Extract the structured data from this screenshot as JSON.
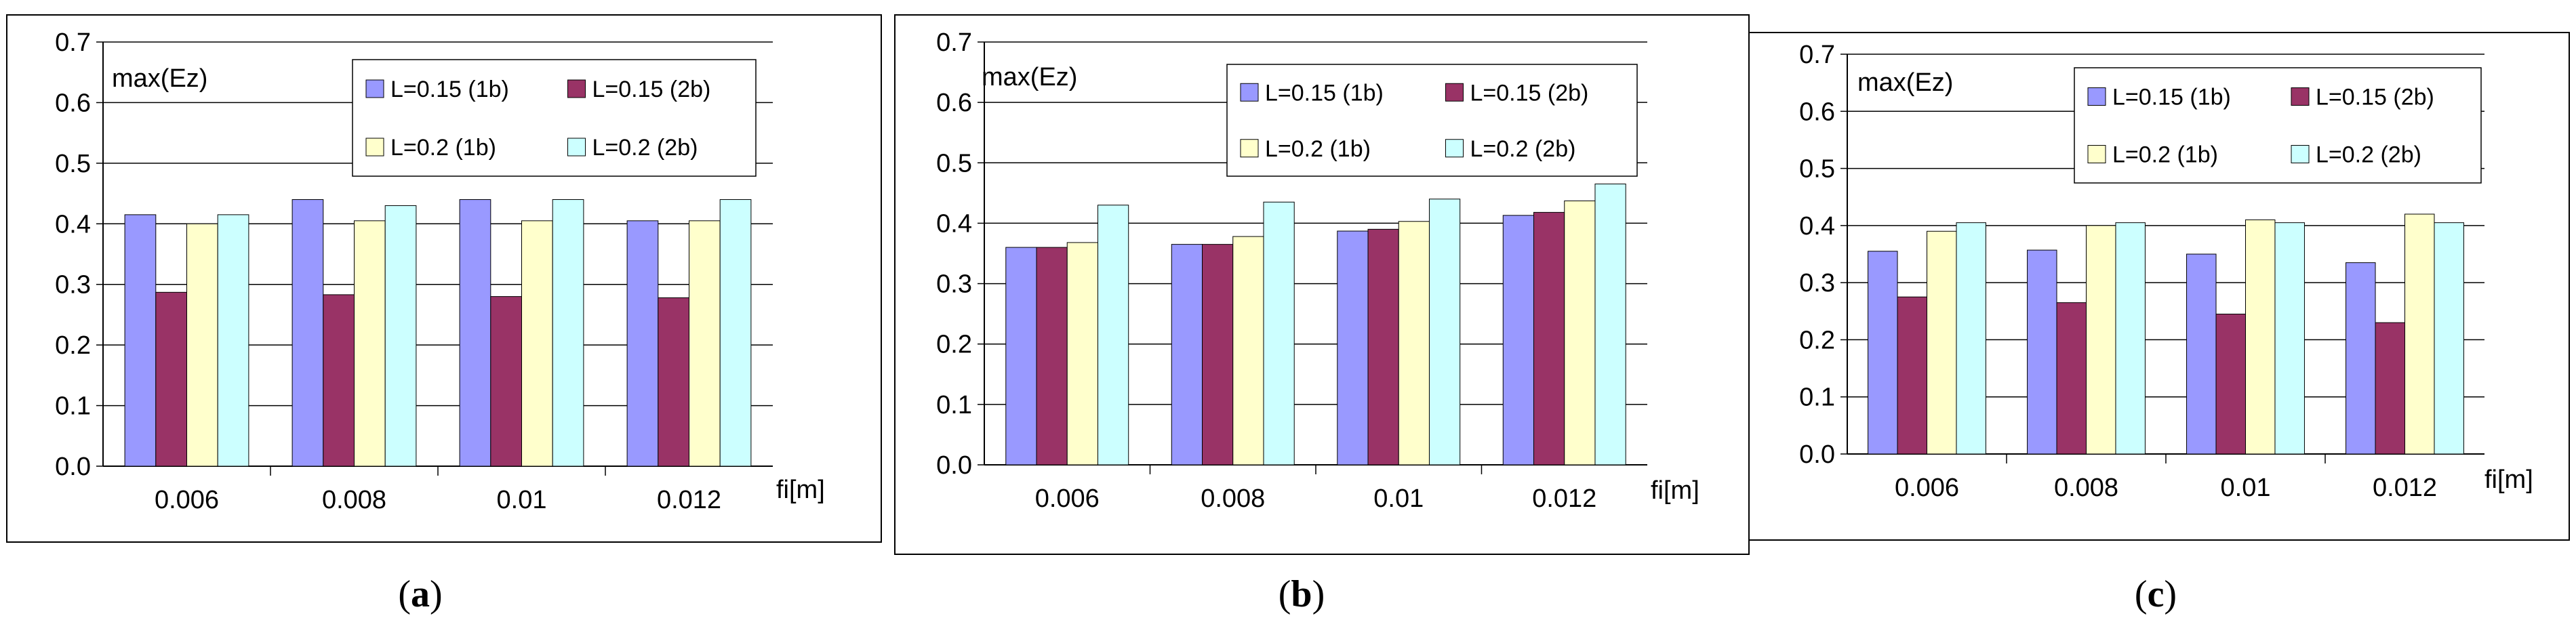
{
  "chart_data": [
    {
      "type": "bar",
      "panel_label": "a",
      "ylabel": "max(Ez)",
      "xlabel": "fi[m]",
      "ylim": [
        0,
        0.7
      ],
      "yticks": [
        "0.0",
        "0.1",
        "0.2",
        "0.3",
        "0.4",
        "0.5",
        "0.6",
        "0.7"
      ],
      "categories": [
        "0.006",
        "0.008",
        "0.01",
        "0.012"
      ],
      "series": [
        {
          "name": "L=0.15 (1b)",
          "color": "#9999FF",
          "values": [
            0.415,
            0.44,
            0.44,
            0.405
          ]
        },
        {
          "name": "L=0.15 (2b)",
          "color": "#993366",
          "values": [
            0.287,
            0.283,
            0.28,
            0.278
          ]
        },
        {
          "name": "L=0.2 (1b)",
          "color": "#FFFFCC",
          "values": [
            0.4,
            0.405,
            0.405,
            0.405
          ]
        },
        {
          "name": "L=0.2 (2b)",
          "color": "#CCFFFF",
          "values": [
            0.415,
            0.43,
            0.44,
            0.44
          ]
        }
      ]
    },
    {
      "type": "bar",
      "panel_label": "b",
      "ylabel": "max(Ez)",
      "xlabel": "fi[m]",
      "ylim": [
        0,
        0.7
      ],
      "yticks": [
        "0.0",
        "0.1",
        "0.2",
        "0.3",
        "0.4",
        "0.5",
        "0.6",
        "0.7"
      ],
      "categories": [
        "0.006",
        "0.008",
        "0.01",
        "0.012"
      ],
      "series": [
        {
          "name": "L=0.15 (1b)",
          "color": "#9999FF",
          "values": [
            0.36,
            0.365,
            0.387,
            0.413
          ]
        },
        {
          "name": "L=0.15 (2b)",
          "color": "#993366",
          "values": [
            0.36,
            0.365,
            0.39,
            0.418
          ]
        },
        {
          "name": "L=0.2 (1b)",
          "color": "#FFFFCC",
          "values": [
            0.368,
            0.378,
            0.403,
            0.437
          ]
        },
        {
          "name": "L=0.2 (2b)",
          "color": "#CCFFFF",
          "values": [
            0.43,
            0.435,
            0.44,
            0.465
          ]
        }
      ]
    },
    {
      "type": "bar",
      "panel_label": "c",
      "ylabel": "max(Ez)",
      "xlabel": "fi[m]",
      "ylim": [
        0,
        0.7
      ],
      "yticks": [
        "0.0",
        "0.1",
        "0.2",
        "0.3",
        "0.4",
        "0.5",
        "0.6",
        "0.7"
      ],
      "categories": [
        "0.006",
        "0.008",
        "0.01",
        "0.012"
      ],
      "series": [
        {
          "name": "L=0.15 (1b)",
          "color": "#9999FF",
          "values": [
            0.355,
            0.357,
            0.35,
            0.335
          ]
        },
        {
          "name": "L=0.15 (2b)",
          "color": "#993366",
          "values": [
            0.275,
            0.265,
            0.245,
            0.23
          ]
        },
        {
          "name": "L=0.2 (1b)",
          "color": "#FFFFCC",
          "values": [
            0.39,
            0.4,
            0.41,
            0.42
          ]
        },
        {
          "name": "L=0.2 (2b)",
          "color": "#CCFFFF",
          "values": [
            0.405,
            0.405,
            0.405,
            0.405
          ]
        }
      ]
    }
  ]
}
